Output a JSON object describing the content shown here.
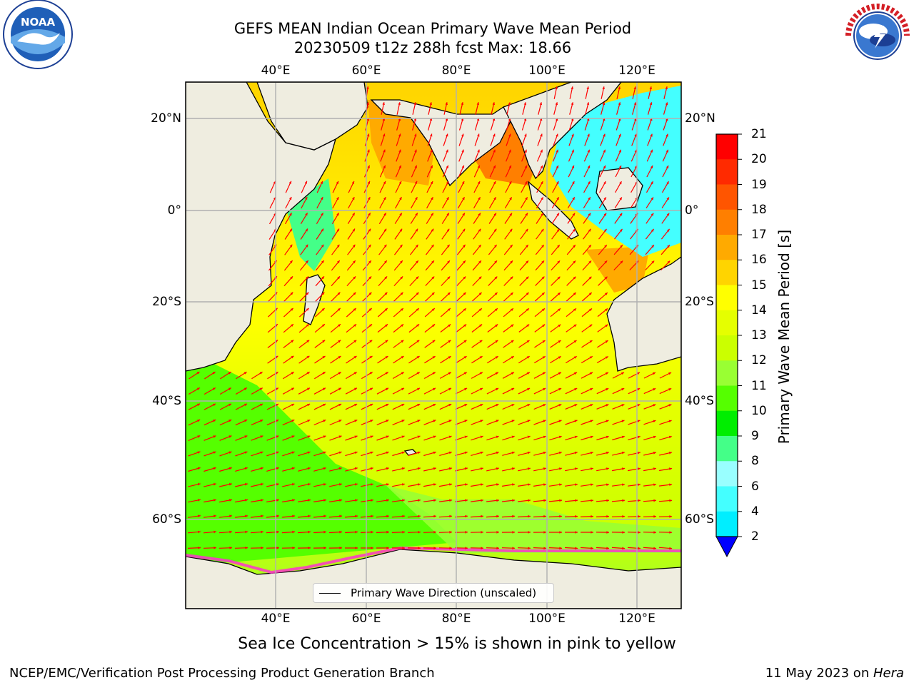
{
  "title": {
    "line1": "GEFS MEAN Indian Ocean Primary Wave Mean Period",
    "line2": "20230509 t12z 288h fcst   Max: 18.66"
  },
  "logos": {
    "left": {
      "icon": "noaa-logo",
      "text": "NOAA",
      "ring_text": "NATIONAL OCEANIC AND ATMOSPHERIC ADMINISTRATION · U.S. DEPARTMENT OF COMMERCE"
    },
    "right": {
      "icon": "national-weather-service-logo",
      "ring_text": "NATIONAL WEATHER SERVICE"
    }
  },
  "map": {
    "lon_labels": [
      "40°E",
      "60°E",
      "80°E",
      "100°E",
      "120°E"
    ],
    "lat_labels": [
      "20°N",
      "0°",
      "20°S",
      "40°S",
      "60°S"
    ],
    "land_color": "#efede0",
    "grid_color": "#b0b0b0",
    "arrow_color": "#ff0000",
    "legend_label": "Primary Wave Direction (unscaled)"
  },
  "colorbar": {
    "label": "Primary Wave Mean Period [s]",
    "ticks": [
      "21",
      "20",
      "19",
      "18",
      "17",
      "16",
      "15",
      "14",
      "13",
      "12",
      "11",
      "10",
      "9",
      "8",
      "6",
      "4",
      "2"
    ],
    "colors": [
      "#ff0000",
      "#ff2a00",
      "#ff5500",
      "#ff7f00",
      "#ffaa00",
      "#ffd400",
      "#ffff00",
      "#e5ff00",
      "#cbff00",
      "#99ff33",
      "#55ff00",
      "#00ee00",
      "#44ff88",
      "#99ffff",
      "#44ffff",
      "#00eeff",
      "#0099ff",
      "#0000ff"
    ]
  },
  "caption": "Sea Ice Concentration > 15% is shown in pink to yellow",
  "footer": {
    "left": "NCEP/EMC/Verification Post Processing Product Generation Branch",
    "right_date": "11 May 2023 on ",
    "right_host": "Hera"
  }
}
